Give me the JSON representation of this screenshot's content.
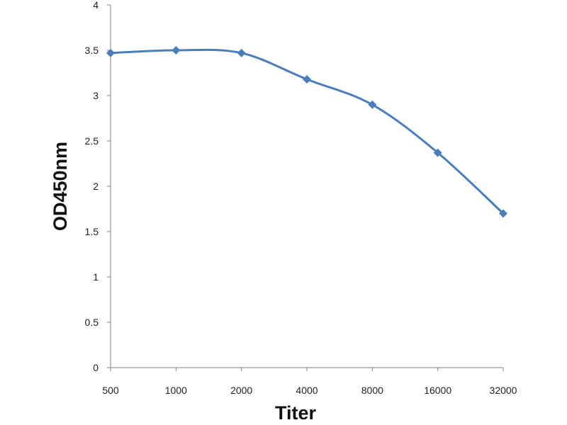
{
  "chart_data": {
    "type": "line",
    "title": "",
    "xlabel": "Titer",
    "ylabel": "OD450nm",
    "categories": [
      "500",
      "1000",
      "2000",
      "4000",
      "8000",
      "16000",
      "32000"
    ],
    "series": [
      {
        "values": [
          3.47,
          3.5,
          3.47,
          3.18,
          2.9,
          2.37,
          1.7
        ],
        "color": "#4A7EBB",
        "marker": "diamond"
      }
    ],
    "ylim": [
      0,
      4
    ],
    "yticks": [
      0,
      0.5,
      1,
      1.5,
      2,
      2.5,
      3,
      3.5,
      4
    ],
    "ytick_labels": [
      "0",
      "0.5",
      "1",
      "1.5",
      "2",
      "2.5",
      "3",
      "3.5",
      "4"
    ],
    "grid": false,
    "legend": "none",
    "axis_color": "#7F7F7F"
  }
}
